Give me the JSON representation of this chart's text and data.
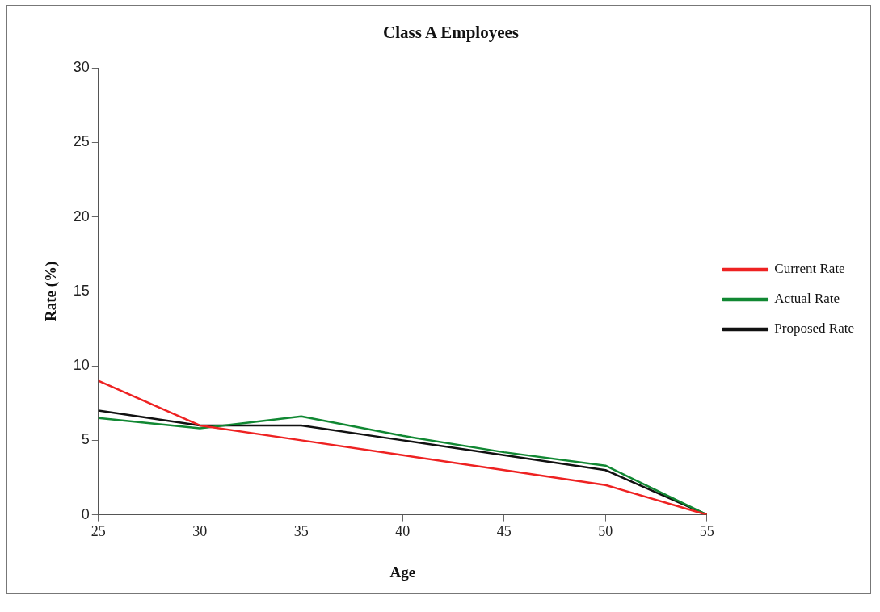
{
  "chart_data": {
    "type": "line",
    "title": "Class A Employees",
    "xlabel": "Age",
    "ylabel": "Rate (%)",
    "x": [
      25,
      30,
      35,
      40,
      45,
      50,
      55
    ],
    "series": [
      {
        "name": "Current Rate",
        "color": "#ee2222",
        "values": [
          9,
          6,
          5,
          4,
          3,
          2,
          0
        ]
      },
      {
        "name": "Actual Rate",
        "color": "#118833",
        "values": [
          6.5,
          5.8,
          6.6,
          5.3,
          4.2,
          3.3,
          0
        ]
      },
      {
        "name": "Proposed Rate",
        "color": "#111111",
        "values": [
          7,
          6,
          6,
          5,
          4,
          3,
          0
        ]
      }
    ],
    "xlim": [
      25,
      55
    ],
    "xticks": [
      25,
      30,
      35,
      40,
      45,
      50,
      55
    ],
    "ylim": [
      0,
      30
    ],
    "yticks": [
      0,
      5,
      10,
      15,
      20,
      25,
      30
    ],
    "grid": false,
    "legend": "right",
    "marker": "none",
    "line_style": "solid"
  }
}
